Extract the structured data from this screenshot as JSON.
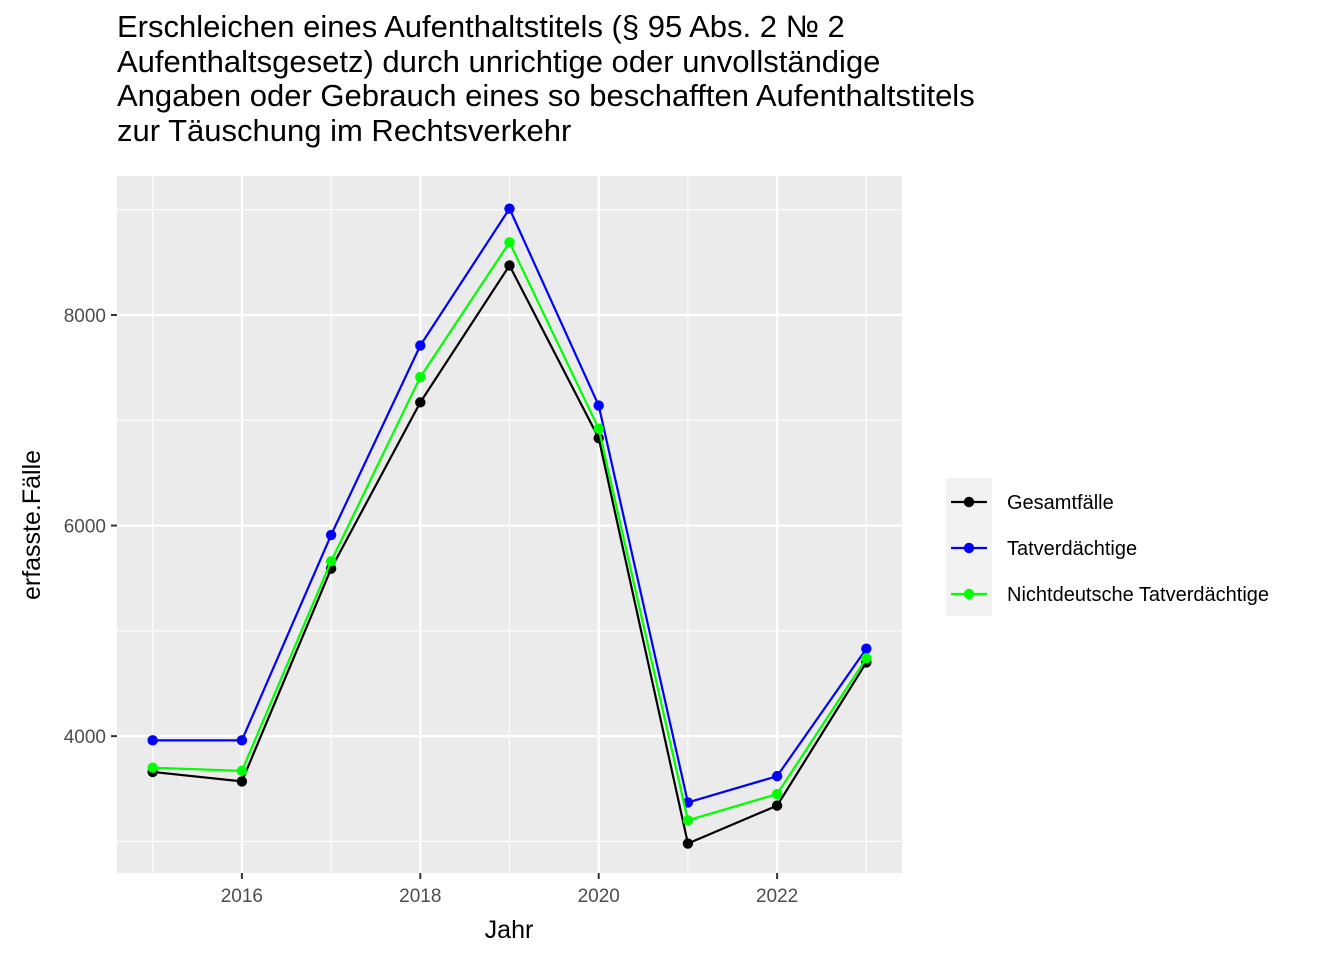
{
  "chart_data": {
    "type": "line",
    "title_lines": [
      "Erschleichen eines Aufenthaltstitels (§ 95 Abs. 2 № 2",
      "Aufenthaltsgesetz) durch unrichtige oder unvollständige",
      "Angaben oder Gebrauch eines so beschafften Aufenthaltstitels",
      "zur Täuschung im Rechtsverkehr"
    ],
    "xlabel": "Jahr",
    "ylabel": "erfasste.Fälle",
    "x": [
      2015,
      2016,
      2017,
      2018,
      2019,
      2020,
      2021,
      2022,
      2023
    ],
    "x_ticks": [
      2016,
      2018,
      2020,
      2022
    ],
    "y_ticks": [
      4000,
      6000,
      8000
    ],
    "xlim": [
      2014.6,
      2023.4
    ],
    "ylim": [
      2700,
      9320
    ],
    "grid": true,
    "legend_position": "right",
    "series": [
      {
        "name": "Gesamtfälle",
        "color": "#000000",
        "values": [
          3660,
          3570,
          5590,
          7170,
          8470,
          6830,
          2980,
          3340,
          4700
        ]
      },
      {
        "name": "Tatverdächtige",
        "color": "#0000ff",
        "values": [
          3960,
          3960,
          5910,
          7710,
          9010,
          7140,
          3370,
          3620,
          4830
        ]
      },
      {
        "name": "Nichtdeutsche Tatverdächtige",
        "color": "#00ff00",
        "values": [
          3700,
          3670,
          5660,
          7410,
          8690,
          6920,
          3200,
          3450,
          4740
        ]
      }
    ]
  }
}
